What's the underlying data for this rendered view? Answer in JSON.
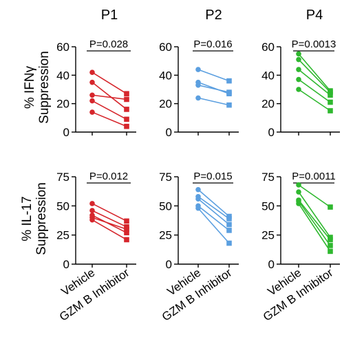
{
  "y_titles": [
    {
      "line1": "% IFNγ",
      "line2": "Suppression"
    },
    {
      "line1": "% IL-17",
      "line2": "Suppression"
    }
  ],
  "colors": {
    "P1": "#d6262c",
    "P2": "#5b9fe0",
    "P4": "#2fb82f"
  },
  "chart_data": [
    {
      "type": "line",
      "title": "P1",
      "annotation": "P=0.028",
      "categories": [
        "Vehicle",
        "GZM B Inhibitor"
      ],
      "ylim": [
        0,
        60
      ],
      "yticks": [
        0,
        20,
        40,
        60
      ],
      "series": [
        {
          "values": [
            42,
            27
          ]
        },
        {
          "values": [
            35,
            16
          ]
        },
        {
          "values": [
            26,
            23
          ]
        },
        {
          "values": [
            22,
            9
          ]
        },
        {
          "values": [
            14,
            4
          ]
        }
      ]
    },
    {
      "type": "line",
      "title": "P2",
      "annotation": "P=0.016",
      "categories": [
        "Vehicle",
        "GZM B Inhibitor"
      ],
      "ylim": [
        0,
        60
      ],
      "yticks": [
        0,
        20,
        40,
        60
      ],
      "series": [
        {
          "values": [
            44,
            36
          ]
        },
        {
          "values": [
            35,
            27
          ]
        },
        {
          "values": [
            33,
            28
          ]
        },
        {
          "values": [
            24,
            19
          ]
        }
      ]
    },
    {
      "type": "line",
      "title": "P4",
      "annotation": "P=0.0013",
      "categories": [
        "Vehicle",
        "GZM B Inhibitor"
      ],
      "ylim": [
        0,
        60
      ],
      "yticks": [
        0,
        20,
        40,
        60
      ],
      "series": [
        {
          "values": [
            55,
            29
          ]
        },
        {
          "values": [
            51,
            28
          ]
        },
        {
          "values": [
            44,
            26
          ]
        },
        {
          "values": [
            37,
            21
          ]
        },
        {
          "values": [
            30,
            15
          ]
        }
      ]
    },
    {
      "type": "line",
      "title": "",
      "annotation": "P=0.012",
      "categories": [
        "Vehicle",
        "GZM B Inhibitor"
      ],
      "ylim": [
        0,
        75
      ],
      "yticks": [
        0,
        25,
        50,
        75
      ],
      "series": [
        {
          "values": [
            52,
            37
          ]
        },
        {
          "values": [
            46,
            32
          ]
        },
        {
          "values": [
            42,
            27
          ]
        },
        {
          "values": [
            40,
            30
          ]
        },
        {
          "values": [
            38,
            21
          ]
        }
      ]
    },
    {
      "type": "line",
      "title": "",
      "annotation": "P=0.015",
      "categories": [
        "Vehicle",
        "GZM B Inhibitor"
      ],
      "ylim": [
        0,
        75
      ],
      "yticks": [
        0,
        25,
        50,
        75
      ],
      "series": [
        {
          "values": [
            64,
            41
          ]
        },
        {
          "values": [
            58,
            39
          ]
        },
        {
          "values": [
            56,
            34
          ]
        },
        {
          "values": [
            50,
            29
          ]
        },
        {
          "values": [
            48,
            18
          ]
        }
      ]
    },
    {
      "type": "line",
      "title": "",
      "annotation": "P=0.0011",
      "categories": [
        "Vehicle",
        "GZM B Inhibitor"
      ],
      "ylim": [
        0,
        75
      ],
      "yticks": [
        0,
        25,
        50,
        75
      ],
      "series": [
        {
          "values": [
            68,
            49
          ]
        },
        {
          "values": [
            62,
            23
          ]
        },
        {
          "values": [
            55,
            21
          ]
        },
        {
          "values": [
            54,
            16
          ]
        },
        {
          "values": [
            52,
            11
          ]
        }
      ]
    }
  ]
}
